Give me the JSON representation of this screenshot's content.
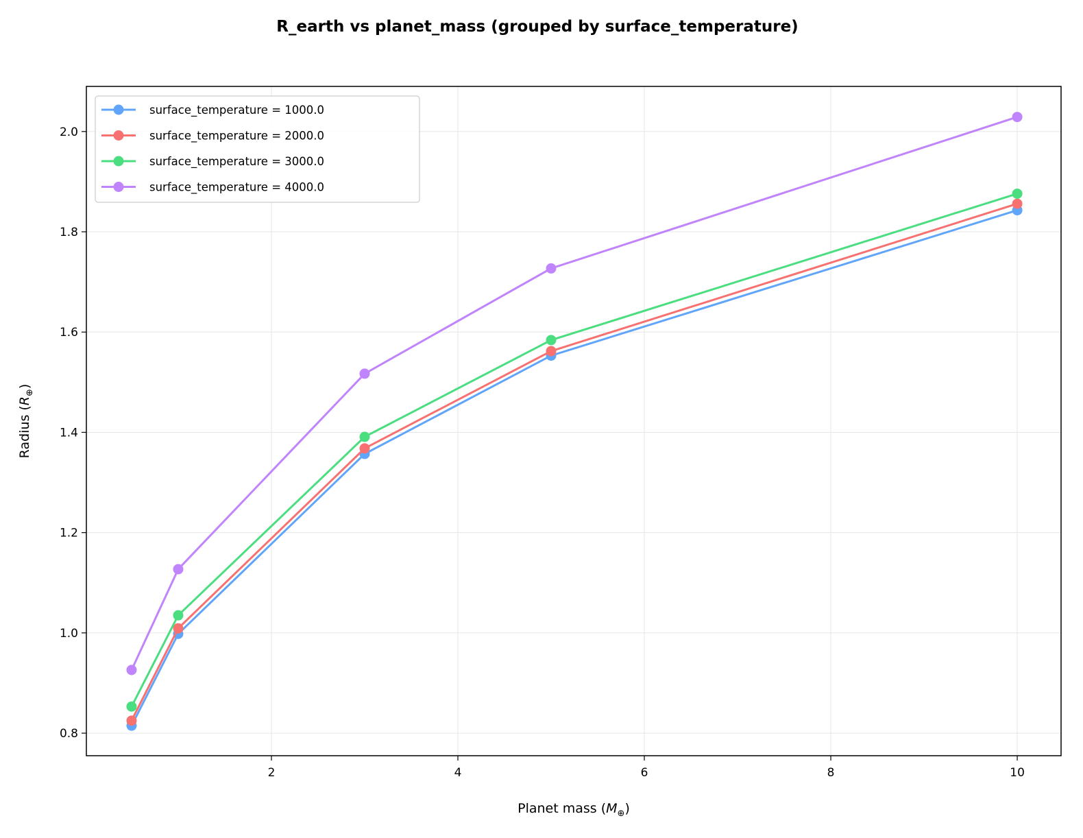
{
  "chart_data": {
    "type": "line",
    "title": "R_earth vs planet_mass (grouped by surface_temperature)",
    "xlabel": "Planet mass (",
    "xlabel_symbol": "M",
    "xlabel_sub": "⊕",
    "xlabel_end": ")",
    "ylabel": "Radius (",
    "ylabel_symbol": "R",
    "ylabel_sub": "⊕",
    "ylabel_end": ")",
    "xlim": [
      0.015,
      10.47
    ],
    "ylim": [
      0.755,
      2.09
    ],
    "xticks": [
      2,
      4,
      6,
      8,
      10
    ],
    "xtick_labels": [
      "2",
      "4",
      "6",
      "8",
      "10"
    ],
    "yticks": [
      0.8,
      1.0,
      1.2,
      1.4,
      1.6,
      1.8,
      2.0
    ],
    "ytick_labels": [
      "0.8",
      "1.0",
      "1.2",
      "1.4",
      "1.6",
      "1.8",
      "2.0"
    ],
    "grid": true,
    "legend_placement": "top-left",
    "x": [
      0.5,
      1,
      3,
      5,
      10
    ],
    "series": [
      {
        "name": "surface_temperature = 1000.0",
        "color": "#60a5fa",
        "values": [
          0.815,
          0.998,
          1.357,
          1.553,
          1.843
        ]
      },
      {
        "name": "surface_temperature = 2000.0",
        "color": "#f87171",
        "values": [
          0.825,
          1.009,
          1.368,
          1.562,
          1.856
        ]
      },
      {
        "name": "surface_temperature = 3000.0",
        "color": "#4ade80",
        "values": [
          0.853,
          1.035,
          1.391,
          1.584,
          1.876
        ]
      },
      {
        "name": "surface_temperature = 4000.0",
        "color": "#c084fc",
        "values": [
          0.926,
          1.127,
          1.517,
          1.727,
          2.029
        ]
      }
    ]
  }
}
